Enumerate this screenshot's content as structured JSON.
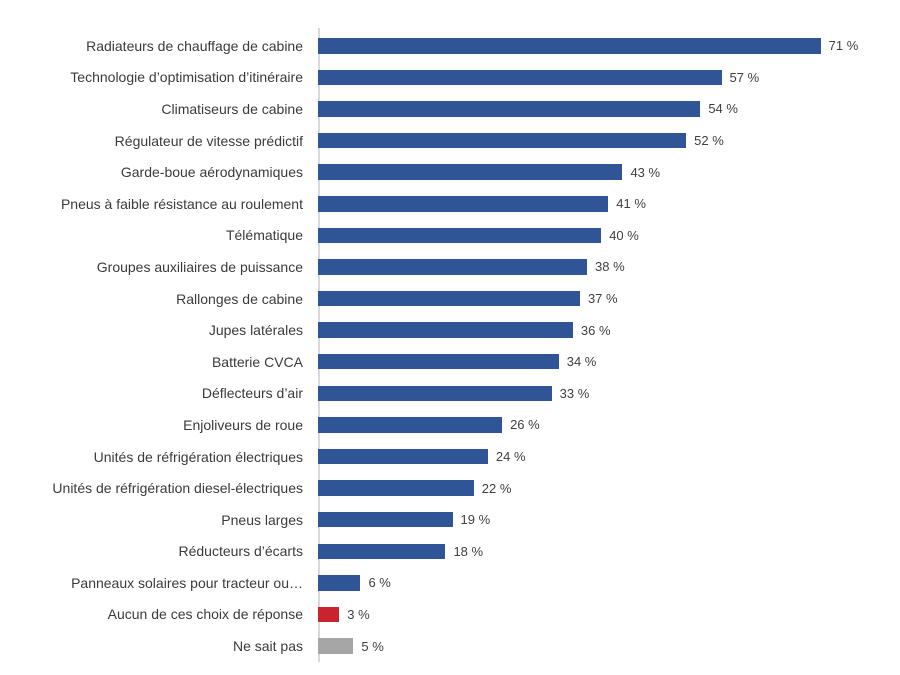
{
  "chart_data": {
    "type": "bar",
    "orientation": "horizontal",
    "title": "",
    "xlabel": "",
    "ylabel": "",
    "grid": false,
    "legend": false,
    "xlim": [
      0,
      82
    ],
    "value_suffix": " %",
    "categories": [
      "Radiateurs de chauffage de cabine",
      "Technologie d’optimisation d’itinéraire",
      "Climatiseurs de cabine",
      "Régulateur de vitesse prédictif",
      "Garde-boue aérodynamiques",
      "Pneus à faible résistance au roulement",
      "Télématique",
      "Groupes auxiliaires de puissance",
      "Rallonges de cabine",
      "Jupes latérales",
      "Batterie CVCA",
      "Déflecteurs d’air",
      "Enjoliveurs de roue",
      "Unités de réfrigération électriques",
      "Unités de réfrigération diesel-électriques",
      "Pneus larges",
      "Réducteurs d’écarts",
      "Panneaux solaires pour tracteur ou…",
      "Aucun de ces choix de réponse",
      "Ne sait pas"
    ],
    "values": [
      71,
      57,
      54,
      52,
      43,
      41,
      40,
      38,
      37,
      36,
      34,
      33,
      26,
      24,
      22,
      19,
      18,
      6,
      3,
      5
    ],
    "value_labels": [
      "71 %",
      "57 %",
      "54 %",
      "52 %",
      "43 %",
      "41 %",
      "40 %",
      "38 %",
      "37 %",
      "36 %",
      "34 %",
      "33 %",
      "26 %",
      "24 %",
      "22 %",
      "19 %",
      "18 %",
      "6 %",
      "3 %",
      "5 %"
    ],
    "bar_colors": [
      "#2F5597",
      "#2F5597",
      "#2F5597",
      "#2F5597",
      "#2F5597",
      "#2F5597",
      "#2F5597",
      "#2F5597",
      "#2F5597",
      "#2F5597",
      "#2F5597",
      "#2F5597",
      "#2F5597",
      "#2F5597",
      "#2F5597",
      "#2F5597",
      "#2F5597",
      "#2F5597",
      "#C9232E",
      "#A6A6A6"
    ]
  },
  "style": {
    "bar_color_default": "#2F5597",
    "bar_color_no_answer": "#C9232E",
    "bar_color_dont_know": "#A6A6A6",
    "axis_line_color": "#D9D9D9",
    "category_text_color": "#3B3B3B",
    "value_text_color": "#404040",
    "background": "#FFFFFF"
  }
}
